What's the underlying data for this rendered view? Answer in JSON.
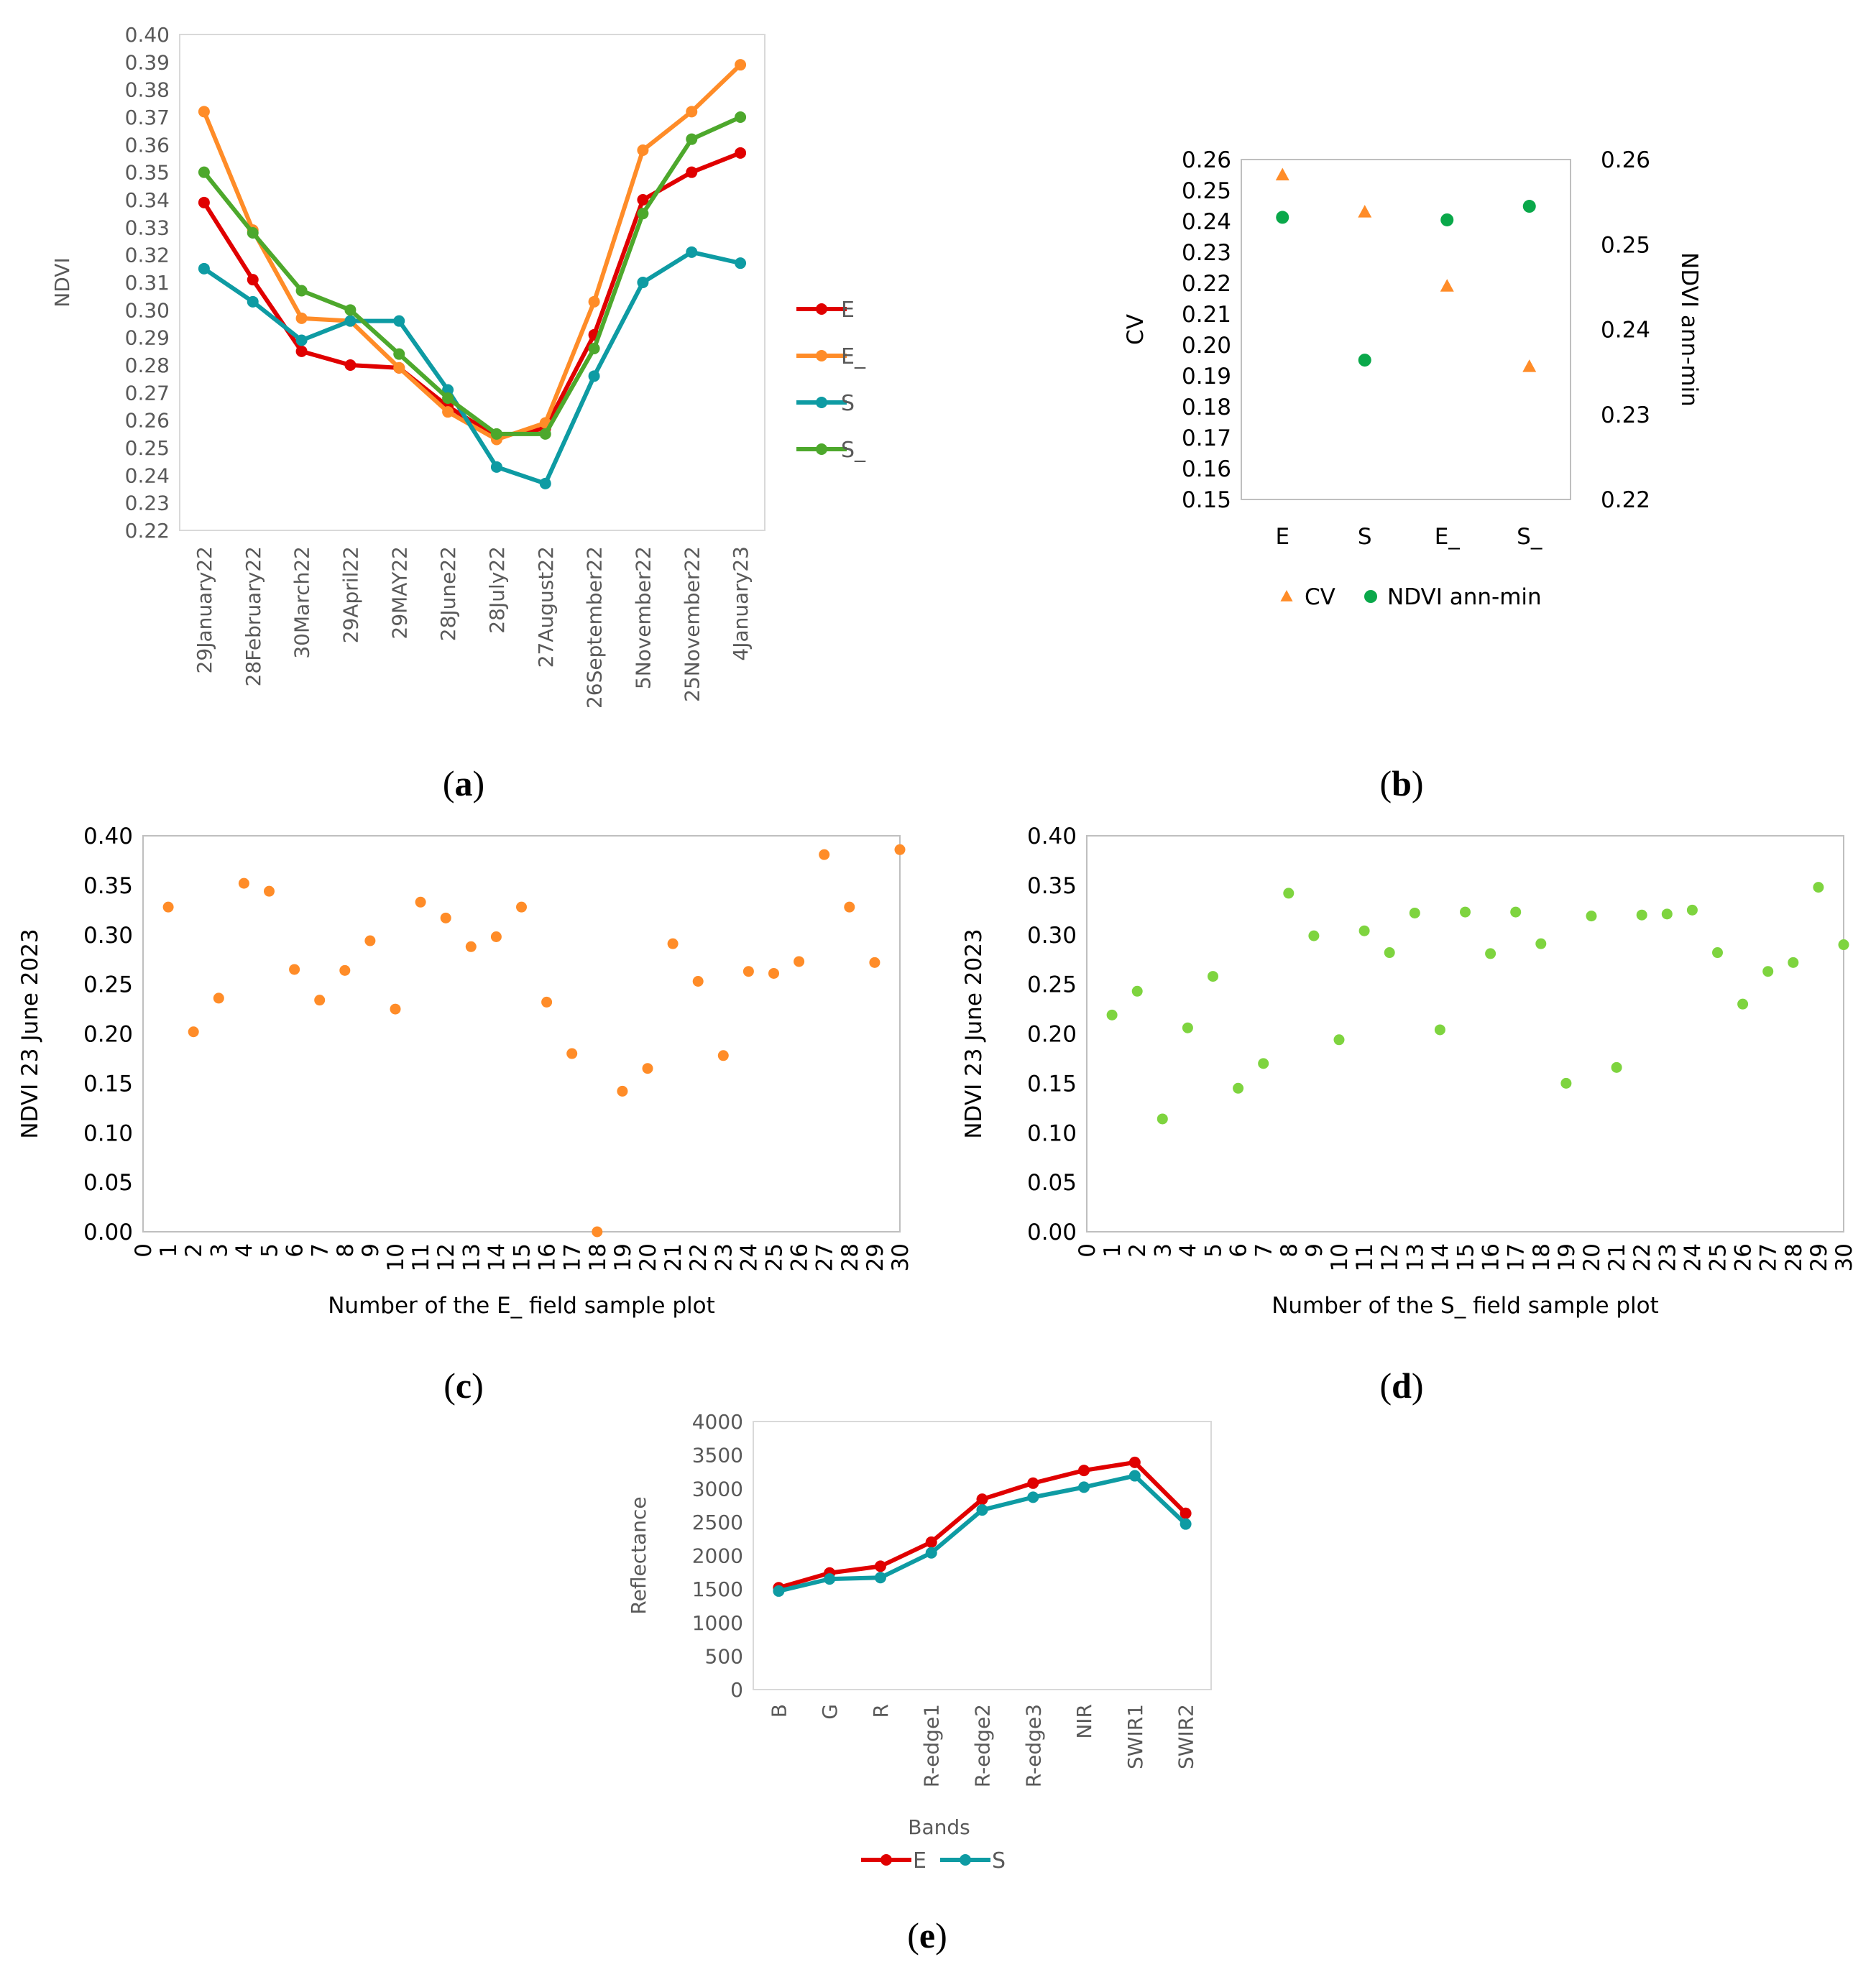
{
  "panels": {
    "a": "a",
    "b": "b",
    "c": "c",
    "d": "d",
    "e": "e"
  },
  "chart_data": [
    {
      "id": "a",
      "type": "line",
      "ylabel": "NDVI",
      "ylim": [
        0.22,
        0.4
      ],
      "ystep": 0.01,
      "categories": [
        "29January22",
        "28February22",
        "30March22",
        "29April22",
        "29MAY22",
        "28June22",
        "28July22",
        "27August22",
        "26September22",
        "5November22",
        "25November22",
        "4January23"
      ],
      "legend_position": "right",
      "series": [
        {
          "name": "E",
          "color": "#e00000",
          "values": [
            0.339,
            0.311,
            0.285,
            0.28,
            0.279,
            0.265,
            0.254,
            0.257,
            0.291,
            0.34,
            0.35,
            0.357
          ]
        },
        {
          "name": "E_",
          "color": "#ff8c28",
          "values": [
            0.372,
            0.329,
            0.297,
            0.296,
            0.279,
            0.263,
            0.253,
            0.259,
            0.303,
            0.358,
            0.372,
            0.389
          ]
        },
        {
          "name": "S",
          "color": "#0e9ba3",
          "values": [
            0.315,
            0.303,
            0.289,
            0.296,
            0.296,
            0.271,
            0.243,
            0.237,
            0.276,
            0.31,
            0.321,
            0.317
          ]
        },
        {
          "name": "S_",
          "color": "#4da82c",
          "values": [
            0.35,
            0.328,
            0.307,
            0.3,
            0.284,
            0.268,
            0.255,
            0.255,
            0.286,
            0.335,
            0.362,
            0.37
          ]
        }
      ]
    },
    {
      "id": "b",
      "type": "scatter",
      "ylabel": "CV",
      "y2label": "NDVI ann-min",
      "ylim": [
        0.15,
        0.26
      ],
      "ystep": 0.01,
      "y2lim": [
        0.22,
        0.26
      ],
      "y2step": 0.01,
      "categories": [
        "E",
        "S",
        "E_",
        "S_"
      ],
      "legend_position": "bottom",
      "series": [
        {
          "name": "CV",
          "axis": "left",
          "marker": "triangle",
          "color": "#ff8c28",
          "values": [
            0.255,
            0.243,
            0.219,
            0.193
          ]
        },
        {
          "name": "NDVI ann-min",
          "axis": "right",
          "marker": "circle",
          "color": "#0aa84a",
          "values": [
            0.2532,
            0.2364,
            0.2529,
            0.2545
          ]
        }
      ]
    },
    {
      "id": "c",
      "type": "scatter",
      "xlabel": "Number of the E_ field sample plot",
      "ylabel": "NDVI 23 June 2023",
      "xlim": [
        0,
        30
      ],
      "ylim": [
        0,
        0.4
      ],
      "ystep": 0.05,
      "color": "#ff8c28",
      "x": [
        1,
        2,
        3,
        4,
        5,
        6,
        7,
        8,
        9,
        10,
        11,
        12,
        13,
        14,
        15,
        16,
        17,
        18,
        19,
        20,
        21,
        22,
        23,
        24,
        25,
        26,
        27,
        28,
        29,
        30
      ],
      "y": [
        0.328,
        0.202,
        0.236,
        0.352,
        0.344,
        0.265,
        0.234,
        0.264,
        0.294,
        0.225,
        0.333,
        0.317,
        0.288,
        0.298,
        0.328,
        0.232,
        0.18,
        0.0,
        0.142,
        0.165,
        0.291,
        0.253,
        0.178,
        0.263,
        0.261,
        0.273,
        0.381,
        0.328,
        0.272,
        0.386
      ]
    },
    {
      "id": "d",
      "type": "scatter",
      "xlabel": "Number of the S_ field sample plot",
      "ylabel": "NDVI 23 June 2023",
      "xlim": [
        0,
        30
      ],
      "ylim": [
        0,
        0.4
      ],
      "ystep": 0.05,
      "color": "#7ed43f",
      "x": [
        1,
        2,
        3,
        4,
        5,
        6,
        7,
        8,
        9,
        10,
        11,
        12,
        13,
        14,
        15,
        16,
        17,
        18,
        19,
        20,
        21,
        22,
        23,
        24,
        25,
        26,
        27,
        28,
        29,
        30
      ],
      "y": [
        0.219,
        0.243,
        0.114,
        0.206,
        0.258,
        0.145,
        0.17,
        0.342,
        0.299,
        0.194,
        0.304,
        0.282,
        0.322,
        0.204,
        0.323,
        0.281,
        0.323,
        0.291,
        0.15,
        0.319,
        0.166,
        0.32,
        0.321,
        0.325,
        0.282,
        0.23,
        0.263,
        0.272,
        0.348,
        0.29
      ]
    },
    {
      "id": "e",
      "type": "line",
      "xlabel": "Bands",
      "ylabel": "Reflectance",
      "ylim": [
        0,
        4000
      ],
      "ystep": 500,
      "categories": [
        "B",
        "G",
        "R",
        "R-edge1",
        "R-edge2",
        "R-edge3",
        "NIR",
        "SWIR1",
        "SWIR2"
      ],
      "legend_position": "bottom",
      "series": [
        {
          "name": "E",
          "color": "#e00000",
          "values": [
            1520,
            1740,
            1840,
            2200,
            2840,
            3080,
            3270,
            3390,
            2630
          ]
        },
        {
          "name": "S",
          "color": "#0e9ba3",
          "values": [
            1470,
            1650,
            1670,
            2040,
            2680,
            2870,
            3020,
            3190,
            2470
          ]
        }
      ]
    }
  ]
}
